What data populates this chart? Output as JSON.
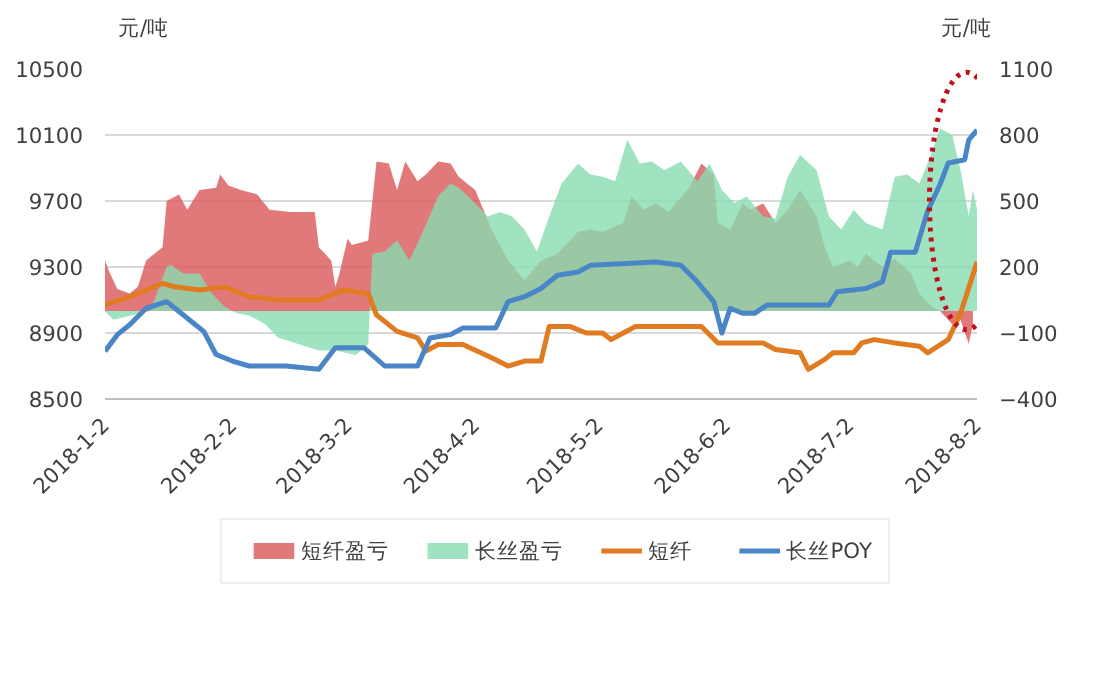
{
  "chart_data": {
    "type": "area",
    "ylabel": "元/吨",
    "y2label": "元/吨",
    "xlim": [
      "2018-01-02",
      "2018-08-02"
    ],
    "xticks": [
      {
        "value": "2018-01-02",
        "label": "2018-1-2"
      },
      {
        "value": "2018-02-02",
        "label": "2018-2-2"
      },
      {
        "value": "2018-03-02",
        "label": "2018-3-2"
      },
      {
        "value": "2018-04-02",
        "label": "2018-4-2"
      },
      {
        "value": "2018-05-02",
        "label": "2018-5-2"
      },
      {
        "value": "2018-06-02",
        "label": "2018-6-2"
      },
      {
        "value": "2018-07-02",
        "label": "2018-7-2"
      },
      {
        "value": "2018-08-02",
        "label": "2018-8-2"
      }
    ],
    "ylim": [
      8500,
      10500
    ],
    "yticks": [
      8500,
      8900,
      9300,
      9700,
      10100,
      10500
    ],
    "y2lim": [
      -400,
      1100
    ],
    "y2ticks": [
      -400,
      -100,
      200,
      500,
      800,
      1100
    ],
    "grid": "y",
    "legend": "bottom",
    "series": [
      {
        "name": "短纤盈亏",
        "type": "area",
        "axis": "y2",
        "color": "#d9585a",
        "x": [
          "2018-01-02",
          "2018-01-03",
          "2018-01-05",
          "2018-01-08",
          "2018-01-10",
          "2018-01-12",
          "2018-01-16",
          "2018-01-17",
          "2018-01-20",
          "2018-01-22",
          "2018-01-25",
          "2018-01-29",
          "2018-01-30",
          "2018-02-01",
          "2018-02-04",
          "2018-02-08",
          "2018-02-11",
          "2018-02-16",
          "2018-02-22",
          "2018-02-23",
          "2018-02-26",
          "2018-02-27",
          "2018-02-28",
          "2018-03-02",
          "2018-03-03",
          "2018-03-07",
          "2018-03-09",
          "2018-03-12",
          "2018-03-14",
          "2018-03-16",
          "2018-03-19",
          "2018-03-21",
          "2018-03-24",
          "2018-03-27",
          "2018-03-29",
          "2018-04-02",
          "2018-04-04",
          "2018-04-06",
          "2018-04-10",
          "2018-04-14",
          "2018-04-18",
          "2018-04-22",
          "2018-04-27",
          "2018-04-30",
          "2018-05-03",
          "2018-05-08",
          "2018-05-10",
          "2018-05-13",
          "2018-05-16",
          "2018-05-19",
          "2018-05-24",
          "2018-05-27",
          "2018-05-30",
          "2018-05-31",
          "2018-06-03",
          "2018-06-06",
          "2018-06-08",
          "2018-06-11",
          "2018-06-14",
          "2018-06-17",
          "2018-06-20",
          "2018-06-24",
          "2018-06-26",
          "2018-06-28",
          "2018-07-02",
          "2018-07-04",
          "2018-07-06",
          "2018-07-10",
          "2018-07-13",
          "2018-07-17",
          "2018-07-19",
          "2018-07-22",
          "2018-07-24",
          "2018-07-27",
          "2018-07-29",
          "2018-07-31",
          "2018-08-01"
        ],
        "values": [
          230,
          180,
          100,
          80,
          110,
          230,
          290,
          500,
          530,
          460,
          550,
          560,
          620,
          570,
          550,
          530,
          460,
          450,
          450,
          290,
          230,
          110,
          170,
          330,
          300,
          320,
          680,
          670,
          550,
          680,
          590,
          620,
          680,
          670,
          610,
          550,
          460,
          370,
          230,
          140,
          230,
          260,
          360,
          370,
          360,
          400,
          520,
          460,
          490,
          450,
          560,
          670,
          620,
          400,
          370,
          490,
          460,
          490,
          400,
          460,
          550,
          430,
          290,
          200,
          230,
          200,
          260,
          200,
          240,
          170,
          80,
          20,
          0,
          -60,
          -40,
          -150,
          -60
        ]
      },
      {
        "name": "长丝盈亏",
        "type": "area",
        "axis": "y2",
        "color": "#88dcb0",
        "x": [
          "2018-01-02",
          "2018-01-04",
          "2018-01-13",
          "2018-01-17",
          "2018-01-18",
          "2018-01-21",
          "2018-01-25",
          "2018-01-28",
          "2018-01-31",
          "2018-02-03",
          "2018-02-06",
          "2018-02-10",
          "2018-02-13",
          "2018-02-18",
          "2018-02-23",
          "2018-02-27",
          "2018-03-04",
          "2018-03-07",
          "2018-03-08",
          "2018-03-11",
          "2018-03-14",
          "2018-03-17",
          "2018-03-20",
          "2018-03-24",
          "2018-03-27",
          "2018-03-29",
          "2018-04-02",
          "2018-04-05",
          "2018-04-08",
          "2018-04-11",
          "2018-04-14",
          "2018-04-17",
          "2018-04-20",
          "2018-04-23",
          "2018-04-27",
          "2018-04-30",
          "2018-05-03",
          "2018-05-06",
          "2018-05-09",
          "2018-05-12",
          "2018-05-15",
          "2018-05-18",
          "2018-05-22",
          "2018-05-26",
          "2018-05-29",
          "2018-06-01",
          "2018-06-04",
          "2018-06-07",
          "2018-06-11",
          "2018-06-14",
          "2018-06-17",
          "2018-06-20",
          "2018-06-24",
          "2018-06-27",
          "2018-06-30",
          "2018-07-03",
          "2018-07-06",
          "2018-07-10",
          "2018-07-13",
          "2018-07-16",
          "2018-07-19",
          "2018-07-22",
          "2018-07-24",
          "2018-07-27",
          "2018-07-29",
          "2018-07-31",
          "2018-08-01",
          "2018-08-02"
        ],
        "values": [
          0,
          -40,
          0,
          200,
          210,
          170,
          170,
          80,
          20,
          -10,
          -20,
          -60,
          -120,
          -150,
          -180,
          -180,
          -200,
          -150,
          260,
          270,
          320,
          230,
          350,
          520,
          580,
          560,
          490,
          430,
          450,
          430,
          370,
          270,
          430,
          580,
          670,
          620,
          610,
          590,
          780,
          670,
          680,
          640,
          680,
          590,
          670,
          550,
          490,
          520,
          430,
          420,
          610,
          710,
          640,
          430,
          370,
          460,
          400,
          370,
          610,
          620,
          580,
          720,
          830,
          800,
          640,
          430,
          550,
          460
        ]
      },
      {
        "name": "短纤",
        "type": "line",
        "color": "#e07b22",
        "x": [
          "2018-01-02",
          "2018-01-08",
          "2018-01-16",
          "2018-01-19",
          "2018-01-25",
          "2018-01-31",
          "2018-02-06",
          "2018-02-13",
          "2018-02-23",
          "2018-03-01",
          "2018-03-07",
          "2018-03-09",
          "2018-03-14",
          "2018-03-19",
          "2018-03-21",
          "2018-03-24",
          "2018-03-30",
          "2018-04-06",
          "2018-04-10",
          "2018-04-14",
          "2018-04-18",
          "2018-04-20",
          "2018-04-25",
          "2018-04-29",
          "2018-05-03",
          "2018-05-05",
          "2018-05-08",
          "2018-05-11",
          "2018-05-27",
          "2018-05-31",
          "2018-06-11",
          "2018-06-14",
          "2018-06-20",
          "2018-06-22",
          "2018-06-26",
          "2018-06-28",
          "2018-07-03",
          "2018-07-05",
          "2018-07-08",
          "2018-07-13",
          "2018-07-19",
          "2018-07-21",
          "2018-07-26",
          "2018-07-29",
          "2018-08-02"
        ],
        "values": [
          9070,
          9120,
          9200,
          9180,
          9160,
          9180,
          9120,
          9100,
          9100,
          9160,
          9140,
          9010,
          8910,
          8870,
          8790,
          8830,
          8830,
          8750,
          8700,
          8730,
          8730,
          8940,
          8940,
          8900,
          8900,
          8860,
          8900,
          8940,
          8940,
          8840,
          8840,
          8800,
          8780,
          8680,
          8740,
          8780,
          8780,
          8840,
          8860,
          8840,
          8820,
          8780,
          8860,
          9020,
          9330
        ]
      },
      {
        "name": "长丝POY",
        "type": "line",
        "color": "#4a86c5",
        "x": [
          "2018-01-02",
          "2018-01-05",
          "2018-01-08",
          "2018-01-12",
          "2018-01-17",
          "2018-01-20",
          "2018-01-23",
          "2018-01-26",
          "2018-01-29",
          "2018-02-02",
          "2018-02-06",
          "2018-02-15",
          "2018-02-23",
          "2018-02-27",
          "2018-03-06",
          "2018-03-11",
          "2018-03-19",
          "2018-03-22",
          "2018-03-27",
          "2018-03-30",
          "2018-04-07",
          "2018-04-10",
          "2018-04-14",
          "2018-04-18",
          "2018-04-22",
          "2018-04-27",
          "2018-04-30",
          "2018-05-16",
          "2018-05-22",
          "2018-05-26",
          "2018-05-30",
          "2018-06-01",
          "2018-06-03",
          "2018-06-06",
          "2018-06-09",
          "2018-06-12",
          "2018-06-27",
          "2018-06-29",
          "2018-07-06",
          "2018-07-10",
          "2018-07-12",
          "2018-07-18",
          "2018-07-21",
          "2018-07-24",
          "2018-07-26",
          "2018-07-30",
          "2018-07-31",
          "2018-08-02"
        ],
        "values": [
          8790,
          8890,
          8950,
          9050,
          9090,
          9030,
          8970,
          8910,
          8770,
          8730,
          8700,
          8700,
          8680,
          8810,
          8810,
          8700,
          8700,
          8870,
          8890,
          8930,
          8930,
          9090,
          9120,
          9170,
          9250,
          9270,
          9310,
          9330,
          9310,
          9210,
          9090,
          8900,
          9050,
          9020,
          9020,
          9070,
          9070,
          9150,
          9170,
          9210,
          9390,
          9390,
          9640,
          9800,
          9930,
          9950,
          10070,
          10130
        ]
      }
    ]
  }
}
